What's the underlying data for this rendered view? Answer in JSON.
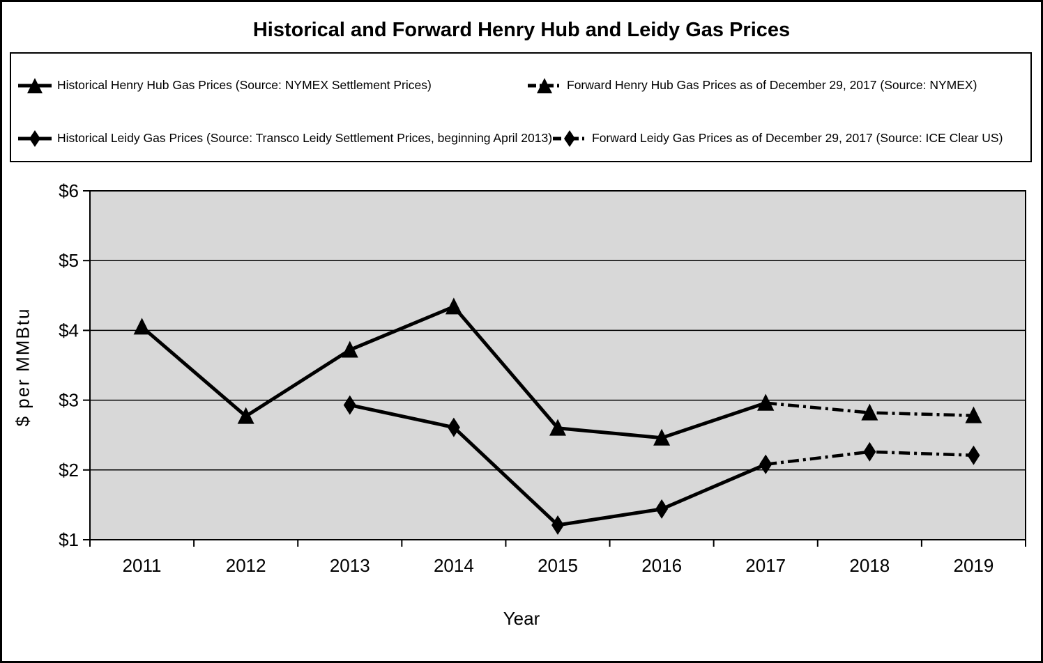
{
  "colors": {
    "line": "#000000",
    "plot_background": "#D8D8D8",
    "page_background": "#FFFFFF",
    "border": "#000000"
  },
  "icons": {
    "legend_sample_1": "solid-line-triangle-marker",
    "legend_sample_2": "dash-dot-line-triangle-marker",
    "legend_sample_3": "solid-line-diamond-marker",
    "legend_sample_4": "dash-dot-line-diamond-marker"
  },
  "chart_data": {
    "type": "line",
    "title": "Historical and Forward Henry Hub and Leidy Gas Prices",
    "xlabel": "Year",
    "ylabel": "$ per MMBtu",
    "categories": [
      "2011",
      "2012",
      "2013",
      "2014",
      "2015",
      "2016",
      "2017",
      "2018",
      "2019"
    ],
    "y_ticks": [
      "$6",
      "$5",
      "$4",
      "$3",
      "$2",
      "$1"
    ],
    "ylim": [
      1,
      6
    ],
    "grid": "horizontal-only",
    "legend_position": "top-box",
    "plot_bg": "#D8D8D8",
    "line_color": "#000000",
    "series": [
      {
        "name": "Historical Henry Hub Gas Prices (Source: NYMEX Settlement Prices)",
        "marker": "triangle",
        "style": "solid",
        "values": [
          4.05,
          2.77,
          3.72,
          4.34,
          2.6,
          2.46,
          2.96,
          null,
          null
        ]
      },
      {
        "name": "Forward Henry Hub Gas Prices as of December 29, 2017 (Source: NYMEX)",
        "marker": "triangle",
        "style": "dash-dot",
        "values": [
          null,
          null,
          null,
          null,
          null,
          null,
          2.96,
          2.82,
          2.78
        ]
      },
      {
        "name": "Historical Leidy Gas Prices (Source: Transco Leidy Settlement Prices, beginning April 2013)",
        "marker": "diamond",
        "style": "solid",
        "values": [
          null,
          null,
          2.93,
          2.61,
          1.21,
          1.44,
          2.08,
          null,
          null
        ]
      },
      {
        "name": "Forward Leidy Gas Prices as of December 29, 2017 (Source: ICE Clear US)",
        "marker": "diamond",
        "style": "dash-dot",
        "values": [
          null,
          null,
          null,
          null,
          null,
          null,
          2.08,
          2.26,
          2.21
        ]
      }
    ]
  }
}
